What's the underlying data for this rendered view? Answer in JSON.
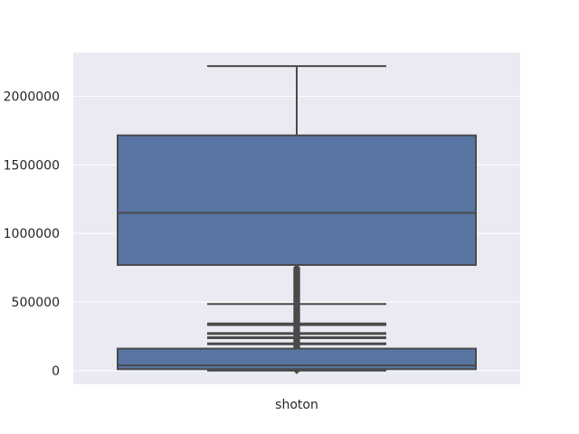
{
  "chart_data": {
    "type": "boxplot",
    "title": "",
    "xlabel": "",
    "ylabel": "",
    "categories": [
      "shoton"
    ],
    "ylim": [
      -100000,
      2320000
    ],
    "yticks": [
      0,
      500000,
      1000000,
      1500000,
      2000000
    ],
    "ytick_labels": [
      "0",
      "500000",
      "1000000",
      "1500000",
      "2000000"
    ],
    "grid": true,
    "colors": {
      "background": "#eaeaf2",
      "box_fill": "#5975a4",
      "line": "#4a4a4a",
      "grid": "#ffffff"
    },
    "boxes": [
      {
        "category": "shoton",
        "q1": 770000,
        "median": 1150000,
        "q3": 1715000,
        "whisker_low": 770000,
        "whisker_high": 2220000,
        "outlier_range": [
          0,
          750000
        ]
      },
      {
        "category": "shoton",
        "q1": 10000,
        "median": 38000,
        "q3": 160000,
        "whisker_low": 0,
        "whisker_high": 485000,
        "extra_lines": [
          340000,
          335000,
          270000,
          240000,
          195000
        ]
      }
    ]
  }
}
